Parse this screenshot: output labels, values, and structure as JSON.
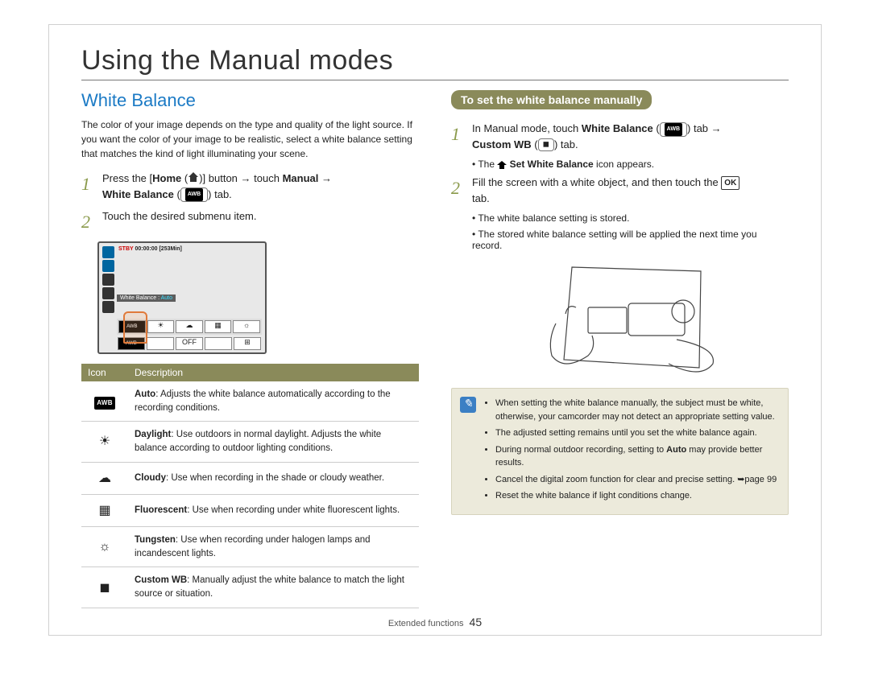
{
  "page": {
    "title": "Using the Manual modes",
    "footer_section": "Extended functions",
    "page_number": "45"
  },
  "left": {
    "heading": "White Balance",
    "intro": "The color of your image depends on the type and quality of the light source. If you want the color of your image to be realistic, select a white balance setting that matches the kind of light illuminating your scene.",
    "step1_a": "Press the [",
    "step1_home": "Home",
    "step1_b": " (",
    "step1_c": ")] button → touch ",
    "step1_manual": "Manual",
    "step1_d": " → ",
    "step1_wb": "White Balance",
    "step1_e": " (",
    "step1_f": ") tab.",
    "step2": "Touch the desired submenu item.",
    "lcd": {
      "stby": "STBY",
      "time": "00:00:00 [253Min]",
      "wb_label": "White Balance : ",
      "wb_value": "Auto"
    },
    "table": {
      "header_icon": "Icon",
      "header_desc": "Description",
      "rows": [
        {
          "icon_glyph": "AWB",
          "icon_type": "awb",
          "bold": "Auto",
          "text": ": Adjusts the white balance automatically according to the recording conditions."
        },
        {
          "icon_glyph": "☀",
          "icon_type": "sym",
          "bold": "Daylight",
          "text": ": Use outdoors in normal daylight. Adjusts the white balance according to outdoor lighting conditions."
        },
        {
          "icon_glyph": "☁",
          "icon_type": "sym",
          "bold": "Cloudy",
          "text": ": Use when recording in the shade or cloudy weather."
        },
        {
          "icon_glyph": "▦",
          "icon_type": "sym",
          "bold": "Fluorescent",
          "text": ": Use when recording under white fluorescent lights."
        },
        {
          "icon_glyph": "☼",
          "icon_type": "sym",
          "bold": "Tungsten",
          "text": ": Use when recording under halogen lamps and incandescent lights."
        },
        {
          "icon_glyph": "◼",
          "icon_type": "sym",
          "bold": "Custom WB",
          "text": ": Manually adjust the white balance to match the light source or situation."
        }
      ]
    }
  },
  "right": {
    "banner": "To set the white balance manually",
    "step1_a": "In Manual mode, touch ",
    "step1_wb": "White Balance",
    "step1_b": " (",
    "step1_c": ") tab → ",
    "step1_cwb": "Custom WB",
    "step1_d": " (",
    "step1_e": ") tab.",
    "step1_note_a": "The ",
    "step1_note_b": " Set White Balance",
    "step1_note_c": " icon appears.",
    "step2_a": "Fill the screen with a white object, and then touch the ",
    "step2_ok": "OK",
    "step2_b": " tab.",
    "step2_note1": "The white balance setting is stored.",
    "step2_note2": "The stored white balance setting will be applied the next time you record.",
    "tips": [
      "When setting the white balance manually, the subject must be white, otherwise, your camcorder may not detect an appropriate setting value.",
      "The adjusted setting remains until you set the white balance again.",
      "During normal outdoor recording, setting to Auto may provide better results.",
      "Cancel the digital zoom function for clear and precise setting. ➥page 99",
      "Reset the white balance if light conditions change."
    ],
    "tips_auto_bold": "Auto"
  }
}
